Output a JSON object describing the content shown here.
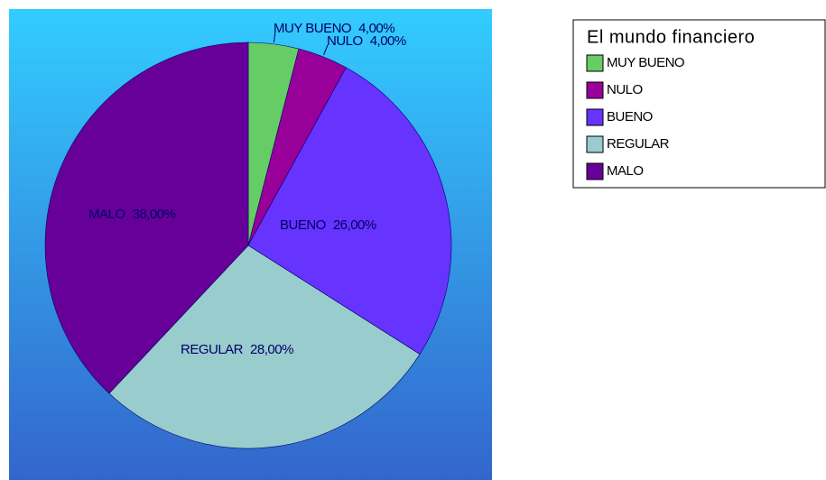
{
  "chart_data": {
    "type": "pie",
    "legend_title": "El mundo financiero",
    "categories": [
      "MUY BUENO",
      "NULO",
      "BUENO",
      "REGULAR",
      "MALO"
    ],
    "values": [
      4,
      4,
      26,
      28,
      38
    ],
    "value_labels": [
      "4,00%",
      "4,00%",
      "26,00%",
      "28,00%",
      "38,00%"
    ],
    "colors": [
      "#66cc66",
      "#990099",
      "#6633ff",
      "#99cccc",
      "#660099"
    ],
    "legend": "upper right"
  }
}
